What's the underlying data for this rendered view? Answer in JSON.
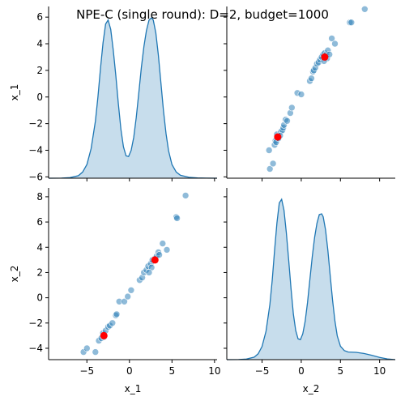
{
  "chart_data": {
    "type": "pairplot",
    "title": "NPE-C (single round): D=2, budget=1000",
    "variables": [
      "x_1",
      "x_2"
    ],
    "colors": {
      "series": "#1f77b4",
      "reference": "#ff0000"
    },
    "grid": false,
    "panels": [
      {
        "row": 0,
        "col": 0,
        "type": "kde",
        "variable": "x_1",
        "xlim": [
          -9.5,
          10.3
        ],
        "ylabel": "x_1",
        "yticks": [
          -6,
          -4,
          -2,
          0,
          2,
          4,
          6
        ],
        "ylim": [
          -6.1,
          6.8
        ],
        "kde_x": [
          -9.5,
          -8,
          -7,
          -6,
          -5.5,
          -5,
          -4.5,
          -4,
          -3.7,
          -3.4,
          -3.1,
          -2.8,
          -2.5,
          -2.2,
          -1.9,
          -1.6,
          -1.3,
          -1,
          -0.7,
          -0.4,
          -0.1,
          0.2,
          0.5,
          0.8,
          1.1,
          1.4,
          1.7,
          2,
          2.3,
          2.6,
          2.8,
          3.1,
          3.4,
          3.7,
          4,
          4.3,
          4.6,
          5,
          5.5,
          6,
          7,
          8,
          9,
          10.3
        ],
        "kde_density": [
          0.0,
          0.003,
          0.015,
          0.07,
          0.17,
          0.38,
          0.82,
          1.58,
          2.25,
          3.05,
          3.75,
          4.27,
          4.38,
          4.12,
          3.55,
          2.84,
          2.06,
          1.35,
          0.87,
          0.62,
          0.6,
          0.77,
          1.13,
          1.68,
          2.37,
          3.06,
          3.65,
          4.09,
          4.38,
          4.44,
          4.38,
          4.02,
          3.41,
          2.63,
          1.87,
          1.23,
          0.76,
          0.38,
          0.17,
          0.08,
          0.025,
          0.008,
          0.002,
          0.0
        ]
      },
      {
        "row": 0,
        "col": 1,
        "type": "scatter",
        "x_variable": "x_2",
        "y_variable": "x_1",
        "xlim": [
          -9.5,
          12.0
        ],
        "ylim": [
          -6.1,
          6.8
        ],
        "points": [
          [
            -4.1,
            -4.0
          ],
          [
            -4.0,
            -5.4
          ],
          [
            -3.6,
            -5.0
          ],
          [
            -3.4,
            -3.6
          ],
          [
            -3.3,
            -3.3
          ],
          [
            -3.2,
            -3.4
          ],
          [
            -3.0,
            -3.0
          ],
          [
            -3.1,
            -2.8
          ],
          [
            -2.9,
            -3.1
          ],
          [
            -2.6,
            -2.6
          ],
          [
            -2.4,
            -2.5
          ],
          [
            -2.7,
            -2.9
          ],
          [
            -2.3,
            -2.3
          ],
          [
            -2.2,
            -2.1
          ],
          [
            -2.0,
            -1.7
          ],
          [
            -1.8,
            -1.8
          ],
          [
            -1.4,
            -1.2
          ],
          [
            -1.2,
            -0.8
          ],
          [
            -0.5,
            0.3
          ],
          [
            0.0,
            0.2
          ],
          [
            1.1,
            1.2
          ],
          [
            1.3,
            1.4
          ],
          [
            1.5,
            1.9
          ],
          [
            1.6,
            2.0
          ],
          [
            1.8,
            2.2
          ],
          [
            2.0,
            2.5
          ],
          [
            2.2,
            2.6
          ],
          [
            2.4,
            2.8
          ],
          [
            2.6,
            3.0
          ],
          [
            2.8,
            3.2
          ],
          [
            3.0,
            3.3
          ],
          [
            3.2,
            3.2
          ],
          [
            3.4,
            3.5
          ],
          [
            3.3,
            2.9
          ],
          [
            2.9,
            2.7
          ],
          [
            3.6,
            3.2
          ],
          [
            3.9,
            4.4
          ],
          [
            4.3,
            4.0
          ],
          [
            6.2,
            5.6
          ],
          [
            6.4,
            5.6
          ],
          [
            8.1,
            6.6
          ]
        ],
        "reference_points": [
          [
            -3.0,
            -3.0
          ],
          [
            3.0,
            3.0
          ]
        ]
      },
      {
        "row": 1,
        "col": 0,
        "type": "scatter",
        "x_variable": "x_1",
        "y_variable": "x_2",
        "xlim": [
          -9.5,
          10.3
        ],
        "ylim": [
          -4.9,
          8.7
        ],
        "xlabel": "x_1",
        "ylabel": "x_2",
        "xticks": [
          -5,
          0,
          5,
          10
        ],
        "yticks": [
          -4,
          -2,
          0,
          2,
          4,
          6,
          8
        ],
        "points": [
          [
            -5.4,
            -4.3
          ],
          [
            -5.0,
            -4.0
          ],
          [
            -4.0,
            -4.3
          ],
          [
            -3.6,
            -3.4
          ],
          [
            -3.3,
            -3.2
          ],
          [
            -3.1,
            -2.8
          ],
          [
            -3.0,
            -3.1
          ],
          [
            -2.8,
            -2.6
          ],
          [
            -2.5,
            -2.3
          ],
          [
            -2.3,
            -2.2
          ],
          [
            -2.0,
            -2.0
          ],
          [
            -1.6,
            -1.4
          ],
          [
            -1.5,
            -1.3
          ],
          [
            -1.2,
            -0.3
          ],
          [
            -0.6,
            -0.3
          ],
          [
            -0.2,
            0.1
          ],
          [
            0.2,
            0.6
          ],
          [
            1.2,
            1.4
          ],
          [
            1.5,
            1.6
          ],
          [
            1.7,
            2.0
          ],
          [
            2.0,
            2.2
          ],
          [
            2.2,
            2.5
          ],
          [
            2.5,
            2.7
          ],
          [
            2.7,
            3.0
          ],
          [
            3.0,
            3.1
          ],
          [
            3.2,
            3.3
          ],
          [
            3.4,
            3.6
          ],
          [
            3.5,
            3.4
          ],
          [
            2.6,
            2.4
          ],
          [
            2.3,
            2.0
          ],
          [
            3.9,
            4.3
          ],
          [
            4.4,
            3.8
          ],
          [
            5.5,
            6.4
          ],
          [
            5.6,
            6.3
          ],
          [
            6.6,
            8.1
          ]
        ],
        "reference_points": [
          [
            -3.0,
            -3.0
          ],
          [
            3.0,
            3.0
          ]
        ]
      },
      {
        "row": 1,
        "col": 1,
        "type": "kde",
        "variable": "x_2",
        "xlim": [
          -9.5,
          12.0
        ],
        "xlabel": "x_2",
        "xticks": [
          -5,
          0,
          5,
          10
        ],
        "kde_x": [
          -9.5,
          -8,
          -7,
          -6,
          -5.5,
          -5,
          -4.5,
          -4,
          -3.7,
          -3.4,
          -3.1,
          -2.8,
          -2.5,
          -2.2,
          -1.9,
          -1.6,
          -1.3,
          -1,
          -0.7,
          -0.4,
          -0.1,
          0.2,
          0.5,
          0.8,
          1.1,
          1.4,
          1.7,
          2,
          2.3,
          2.6,
          2.8,
          3.1,
          3.4,
          3.7,
          4,
          4.3,
          4.6,
          5,
          5.5,
          6,
          7,
          8,
          9,
          10,
          11,
          12
        ],
        "kde_density": [
          0.0,
          0.003,
          0.015,
          0.07,
          0.16,
          0.36,
          0.78,
          1.52,
          2.19,
          3.01,
          3.76,
          4.31,
          4.41,
          4.11,
          3.49,
          2.74,
          1.95,
          1.25,
          0.8,
          0.57,
          0.55,
          0.71,
          1.05,
          1.56,
          2.19,
          2.83,
          3.36,
          3.75,
          3.99,
          4.01,
          3.93,
          3.57,
          3.0,
          2.3,
          1.63,
          1.06,
          0.65,
          0.37,
          0.25,
          0.21,
          0.2,
          0.17,
          0.12,
          0.06,
          0.02,
          0.0
        ]
      }
    ]
  }
}
